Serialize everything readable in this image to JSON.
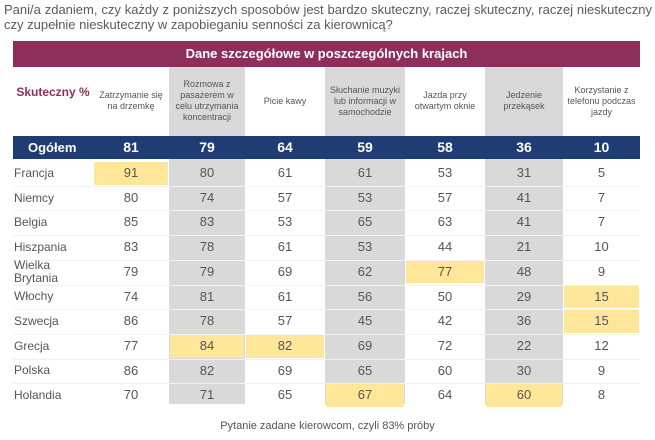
{
  "question": "Pani/a zdaniem, czy każdy z poniższych sposobów jest bardzo skuteczny, raczej skuteczny, raczej nieskuteczny czy zupełnie nieskuteczny w zapobieganiu senności za kierownicą?",
  "table_title": "Dane szczegółowe w poszczególnych krajach",
  "metric_label": "Skuteczny %",
  "footnote": "Pytanie zadane kierowcom, czyli 83% próby",
  "colors": {
    "title_bg": "#8e2f5b",
    "total_bg": "#1f3c74",
    "highlight": "#ffe699",
    "grey_col": "#d9d9d9"
  },
  "chart_data": {
    "type": "table",
    "title": "Dane szczegółowe w poszczególnych krajach",
    "columns": [
      "Zatrzymanie się na drzemkę",
      "Rozmowa z pasażerem w celu utrzymania koncentracji",
      "Picie kawy",
      "Słuchanie muzyki lub informacji w samochodzie",
      "Jazda przy otwartym oknie",
      "Jedzenie przekąsek",
      "Korzystanie z telefonu podczas jazdy"
    ],
    "total": {
      "label": "Ogółem",
      "values": [
        81,
        79,
        64,
        59,
        58,
        36,
        10
      ]
    },
    "rows": [
      {
        "label": "Francja",
        "values": [
          91,
          80,
          61,
          61,
          53,
          31,
          5
        ]
      },
      {
        "label": "Niemcy",
        "values": [
          80,
          74,
          57,
          53,
          57,
          41,
          7
        ]
      },
      {
        "label": "Belgia",
        "values": [
          85,
          83,
          53,
          65,
          63,
          41,
          7
        ]
      },
      {
        "label": "Hiszpania",
        "values": [
          83,
          78,
          61,
          53,
          44,
          21,
          10
        ]
      },
      {
        "label": "Wielka Brytania",
        "values": [
          79,
          79,
          69,
          62,
          77,
          48,
          9
        ]
      },
      {
        "label": "Włochy",
        "values": [
          74,
          81,
          61,
          56,
          50,
          29,
          15
        ]
      },
      {
        "label": "Szwecja",
        "values": [
          86,
          78,
          57,
          45,
          42,
          36,
          15
        ]
      },
      {
        "label": "Grecja",
        "values": [
          77,
          84,
          82,
          69,
          72,
          22,
          12
        ]
      },
      {
        "label": "Polska",
        "values": [
          86,
          82,
          69,
          65,
          60,
          30,
          9
        ]
      },
      {
        "label": "Holandia",
        "values": [
          70,
          71,
          65,
          67,
          64,
          60,
          8
        ]
      }
    ],
    "highlighted_cells": [
      [
        0,
        0
      ],
      [
        4,
        4
      ],
      [
        5,
        6
      ],
      [
        6,
        6
      ],
      [
        7,
        1
      ],
      [
        7,
        2
      ],
      [
        9,
        3
      ],
      [
        9,
        5
      ]
    ],
    "shaded_columns": [
      1,
      3,
      5
    ]
  }
}
